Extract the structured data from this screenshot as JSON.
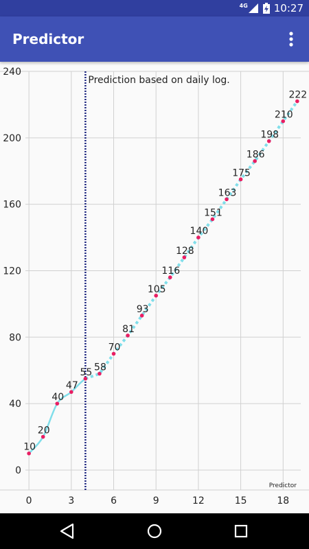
{
  "status": {
    "network": "4G",
    "time": "10:27"
  },
  "app": {
    "title": "Predictor"
  },
  "chart_data": {
    "type": "line",
    "annotation": "Prediction based on daily log.",
    "watermark": "Predictor",
    "prediction_start_x": 4,
    "x": [
      0,
      1,
      2,
      3,
      4,
      5,
      6,
      7,
      8,
      9,
      10,
      11,
      12,
      13,
      14,
      15,
      16,
      17,
      18,
      19
    ],
    "values": [
      10,
      20,
      40,
      47,
      55,
      58,
      70,
      81,
      93,
      105,
      116,
      128,
      140,
      151,
      163,
      175,
      186,
      198,
      210,
      222
    ],
    "xticks": [
      0,
      3,
      6,
      9,
      12,
      15,
      18
    ],
    "yticks": [
      0,
      40,
      80,
      120,
      160,
      200,
      240
    ],
    "xlim": [
      -0.25,
      19.25
    ],
    "ylim": [
      -12,
      240
    ],
    "grid": true,
    "colors": {
      "line": "#80deea",
      "point": "#e91e63",
      "cutoff": "#1a237e",
      "grid": "#d0d0d0",
      "text": "#222222"
    }
  }
}
